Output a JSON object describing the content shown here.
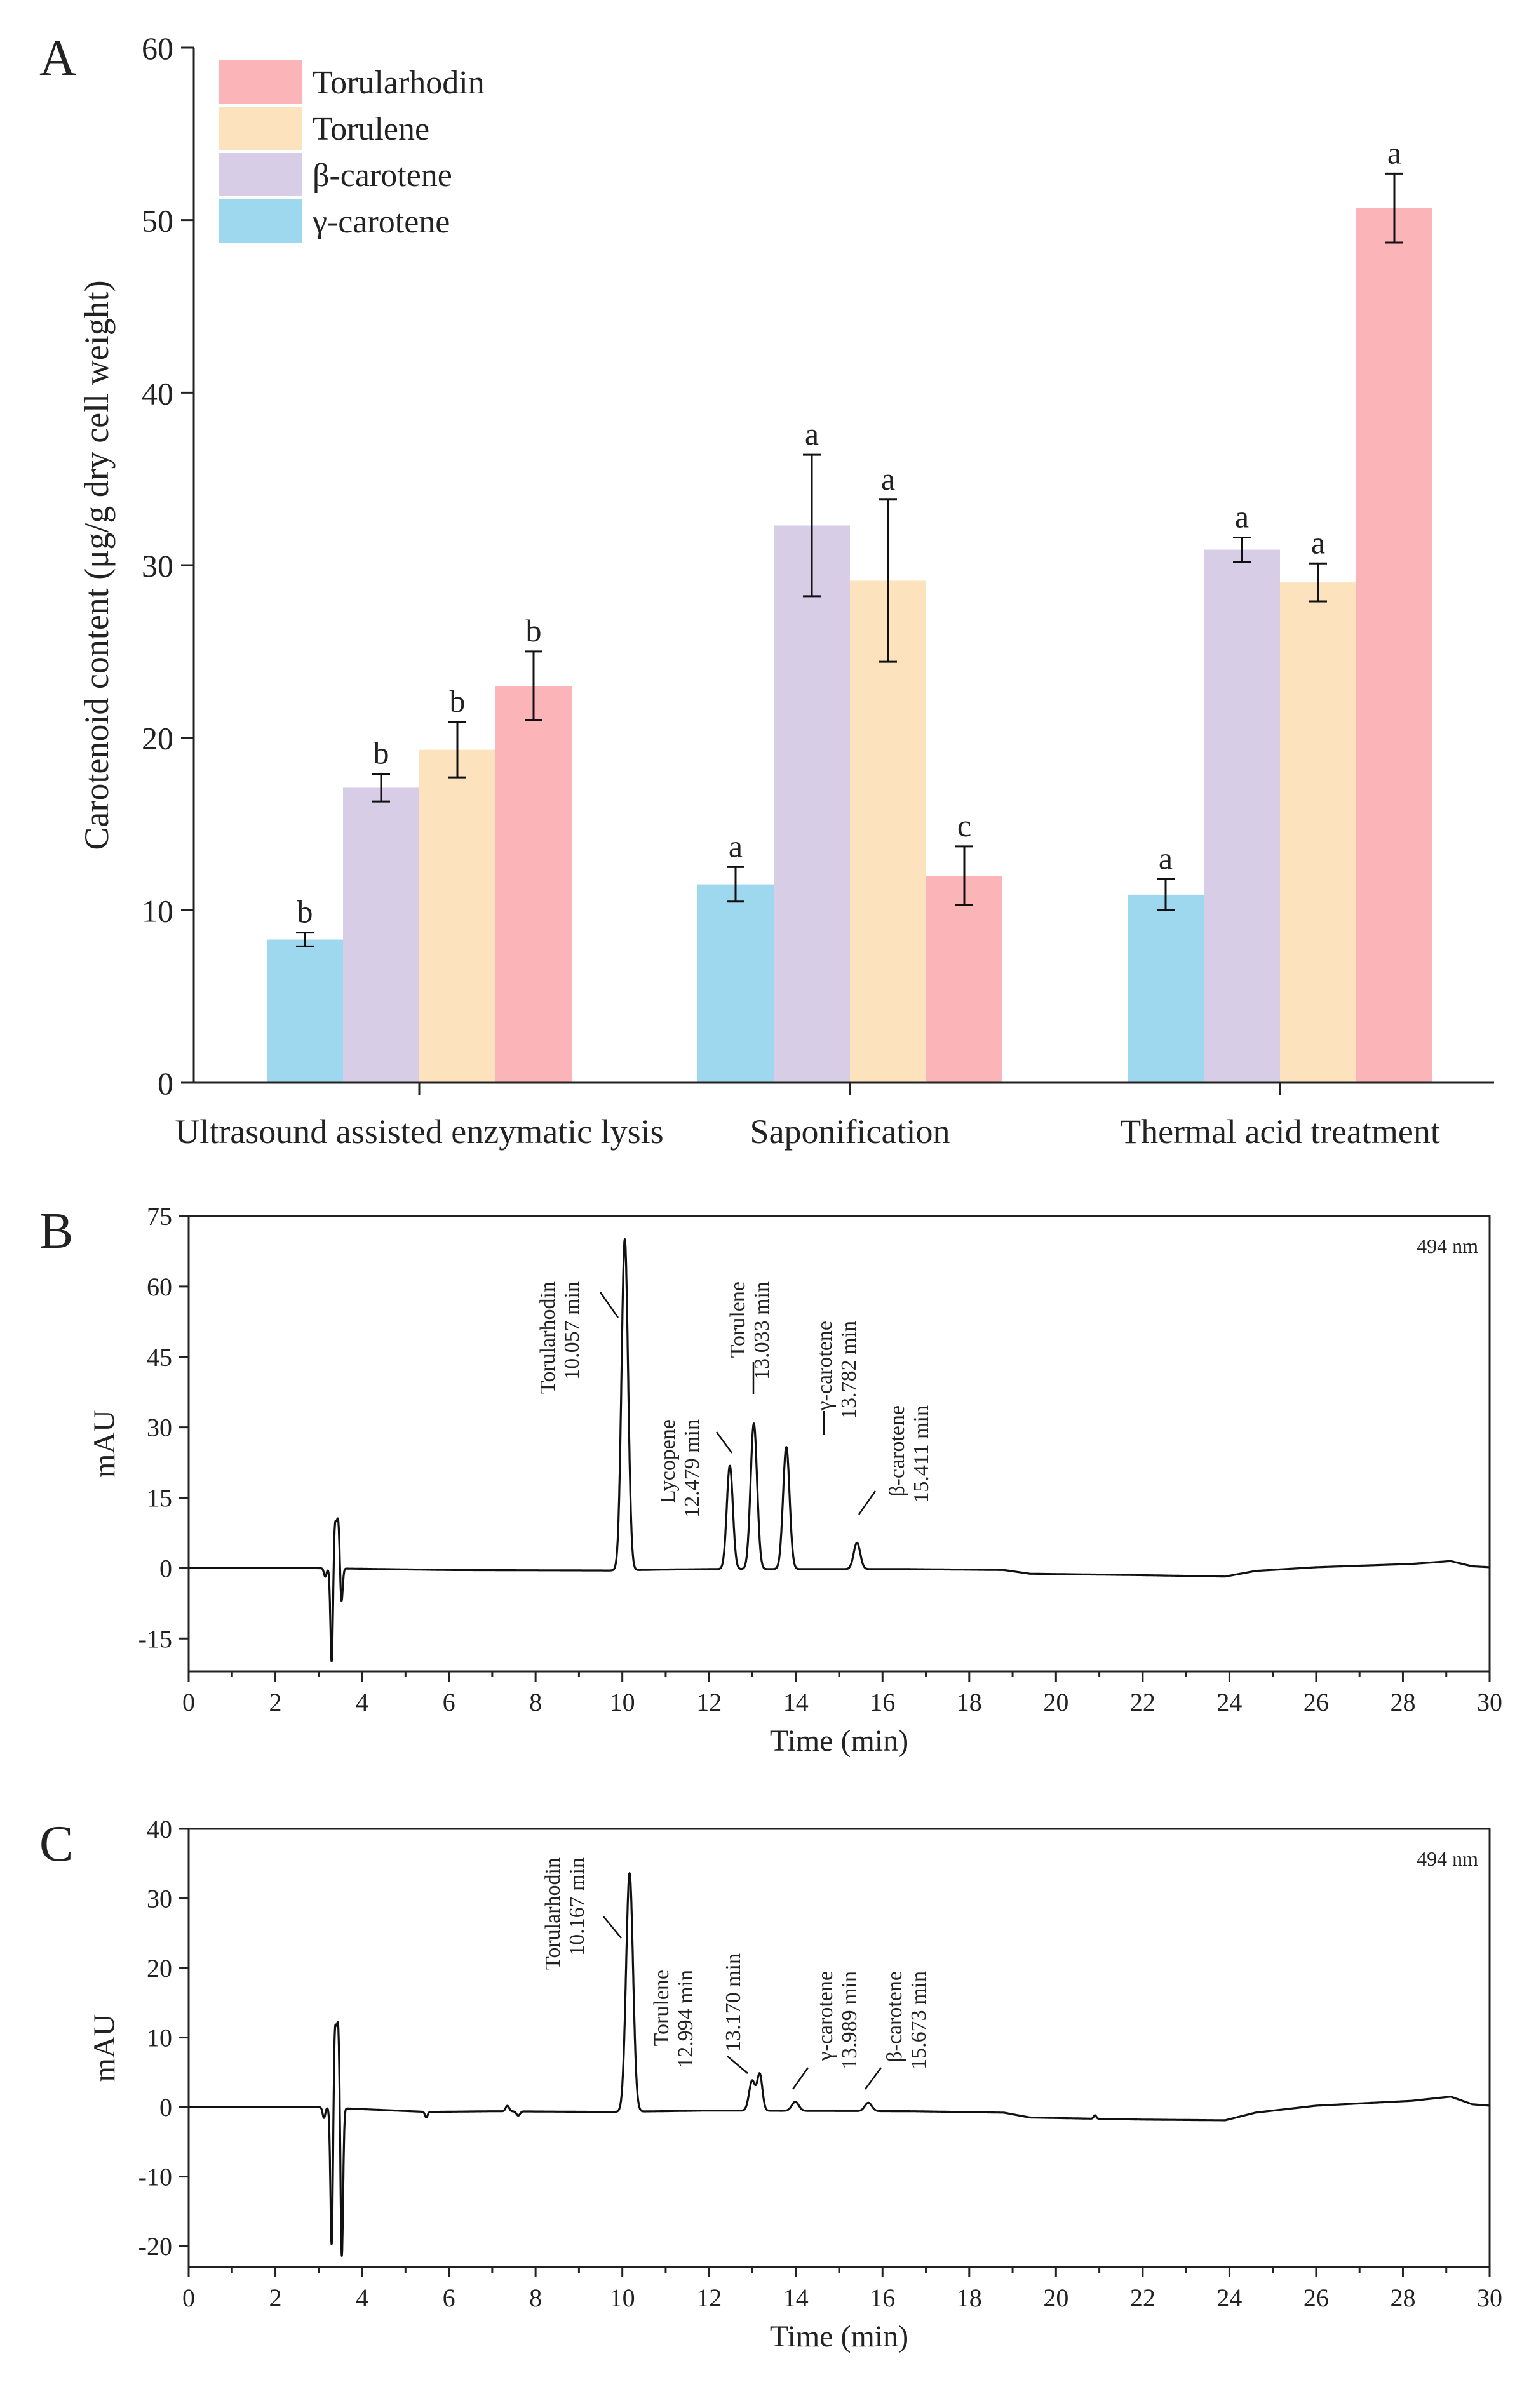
{
  "chart_data": [
    {
      "type": "bar",
      "panel_label": "A",
      "title": "",
      "xlabel": "",
      "ylabel": "Carotenoid content (μg/g dry cell weight)",
      "ylim": [
        0,
        60
      ],
      "yticks": [
        0,
        10,
        20,
        30,
        40,
        50,
        60
      ],
      "grid": false,
      "legend_position": "top-left",
      "categories": [
        "Ultrasound assisted enzymatic lysis",
        "Saponification",
        "Thermal acid treatment"
      ],
      "series": [
        {
          "name": "γ-carotene",
          "color": "#9ed8ef",
          "values": [
            8.3,
            11.5,
            10.9
          ],
          "errors": [
            0.4,
            1.0,
            0.9
          ],
          "letters": [
            "b",
            "a",
            "a"
          ]
        },
        {
          "name": "β-carotene",
          "color": "#d8cde6",
          "values": [
            17.1,
            32.3,
            30.9
          ],
          "errors": [
            0.8,
            4.1,
            0.7
          ],
          "letters": [
            "b",
            "a",
            "a"
          ]
        },
        {
          "name": "Torulene",
          "color": "#fce3bd",
          "values": [
            19.3,
            29.1,
            29.0
          ],
          "errors": [
            1.6,
            4.7,
            1.1
          ],
          "letters": [
            "b",
            "a",
            "a"
          ]
        },
        {
          "name": "Torularhodin",
          "color": "#fbb4b7",
          "values": [
            23.0,
            12.0,
            50.7
          ],
          "errors": [
            2.0,
            1.7,
            2.0
          ],
          "letters": [
            "b",
            "c",
            "a"
          ]
        }
      ],
      "legend_order": [
        "Torularhodin",
        "Torulene",
        "β-carotene",
        "γ-carotene"
      ]
    },
    {
      "type": "line",
      "panel_label": "B",
      "xlabel": "Time (min)",
      "ylabel": "mAU",
      "annotation": "494 nm",
      "xlim": [
        0,
        30
      ],
      "ylim": [
        -22,
        75
      ],
      "xticks": [
        0,
        2,
        4,
        6,
        8,
        10,
        12,
        14,
        16,
        18,
        20,
        22,
        24,
        26,
        28,
        30
      ],
      "yticks": [
        -15,
        0,
        15,
        30,
        45,
        60,
        75
      ],
      "baseline": [
        [
          0,
          0
        ],
        [
          2.9,
          0
        ],
        [
          6,
          -0.4
        ],
        [
          9.7,
          -0.5
        ],
        [
          11,
          -0.3
        ],
        [
          12.1,
          -0.2
        ],
        [
          16.5,
          -0.2
        ],
        [
          18.8,
          -0.4
        ],
        [
          19.4,
          -1.2
        ],
        [
          22,
          -1.5
        ],
        [
          23.9,
          -1.8
        ],
        [
          24.6,
          -0.6
        ],
        [
          26,
          0.2
        ],
        [
          28.2,
          0.9
        ],
        [
          29.1,
          1.5
        ],
        [
          29.6,
          0.4
        ],
        [
          30,
          0.2
        ]
      ],
      "peaks": [
        {
          "time": 3.15,
          "height": -1.8,
          "width": 0.03
        },
        {
          "time": 3.3,
          "height": -21.0,
          "width": 0.03
        },
        {
          "time": 3.37,
          "height": 9.5,
          "width": 0.035
        },
        {
          "time": 3.45,
          "height": 10.0,
          "width": 0.035
        },
        {
          "time": 3.52,
          "height": -8.0,
          "width": 0.03
        },
        {
          "time": 10.057,
          "height": 70.5,
          "width": 0.075
        },
        {
          "time": 12.479,
          "height": 22.0,
          "width": 0.07
        },
        {
          "time": 13.033,
          "height": 31.0,
          "width": 0.075
        },
        {
          "time": 13.782,
          "height": 26.0,
          "width": 0.075
        },
        {
          "time": 15.411,
          "height": 5.6,
          "width": 0.075
        }
      ],
      "peak_labels": [
        {
          "name": "Torularhodin",
          "time_label": "10.057 min",
          "time": 10.057
        },
        {
          "name": "Lycopene",
          "time_label": "12.479 min",
          "time": 12.479
        },
        {
          "name": "Torulene",
          "time_label": "13.033 min",
          "time": 13.033
        },
        {
          "name": "γ-carotene",
          "time_label": "13.782 min",
          "time": 13.782
        },
        {
          "name": "β-carotene",
          "time_label": "15.411 min",
          "time": 15.411
        }
      ]
    },
    {
      "type": "line",
      "panel_label": "C",
      "xlabel": "Time (min)",
      "ylabel": "mAU",
      "annotation": "494 nm",
      "xlim": [
        0,
        30
      ],
      "ylim": [
        -23,
        40
      ],
      "xticks": [
        0,
        2,
        4,
        6,
        8,
        10,
        12,
        14,
        16,
        18,
        20,
        22,
        24,
        26,
        28,
        30
      ],
      "yticks": [
        -20,
        -10,
        0,
        10,
        20,
        30,
        40
      ],
      "baseline": [
        [
          0,
          0
        ],
        [
          2.9,
          0
        ],
        [
          5.5,
          -0.7
        ],
        [
          7,
          -0.6
        ],
        [
          9.7,
          -0.7
        ],
        [
          12,
          -0.5
        ],
        [
          16.7,
          -0.6
        ],
        [
          18.8,
          -0.8
        ],
        [
          19.4,
          -1.5
        ],
        [
          22,
          -1.8
        ],
        [
          23.9,
          -1.9
        ],
        [
          24.6,
          -0.8
        ],
        [
          26,
          0.2
        ],
        [
          28.2,
          0.9
        ],
        [
          29.1,
          1.5
        ],
        [
          29.6,
          0.4
        ],
        [
          30,
          0.2
        ]
      ],
      "peaks": [
        {
          "time": 3.12,
          "height": -1.5,
          "width": 0.03
        },
        {
          "time": 3.3,
          "height": -21.0,
          "width": 0.03
        },
        {
          "time": 3.37,
          "height": 11.3,
          "width": 0.035
        },
        {
          "time": 3.45,
          "height": 11.5,
          "width": 0.035
        },
        {
          "time": 3.53,
          "height": -22.0,
          "width": 0.03
        },
        {
          "time": 5.48,
          "height": -0.8,
          "width": 0.03
        },
        {
          "time": 7.35,
          "height": 0.8,
          "width": 0.04
        },
        {
          "time": 7.6,
          "height": -0.6,
          "width": 0.04
        },
        {
          "time": 10.167,
          "height": 34.3,
          "width": 0.08
        },
        {
          "time": 12.994,
          "height": 4.3,
          "width": 0.07
        },
        {
          "time": 13.17,
          "height": 5.2,
          "width": 0.06
        },
        {
          "time": 13.989,
          "height": 1.3,
          "width": 0.08
        },
        {
          "time": 15.673,
          "height": 1.2,
          "width": 0.08
        },
        {
          "time": 20.9,
          "height": 0.5,
          "width": 0.03
        }
      ],
      "peak_labels": [
        {
          "name": "Torularhodin",
          "time_label": "10.167 min",
          "time": 10.167
        },
        {
          "name": "Torulene",
          "time_label": "12.994 min",
          "time": 12.994
        },
        {
          "name": "",
          "time_label": "13.170 min",
          "time": 13.17
        },
        {
          "name": "γ-carotene",
          "time_label": "13.989 min",
          "time": 13.989
        },
        {
          "name": "β-carotene",
          "time_label": "15.673 min",
          "time": 15.673
        }
      ]
    }
  ]
}
